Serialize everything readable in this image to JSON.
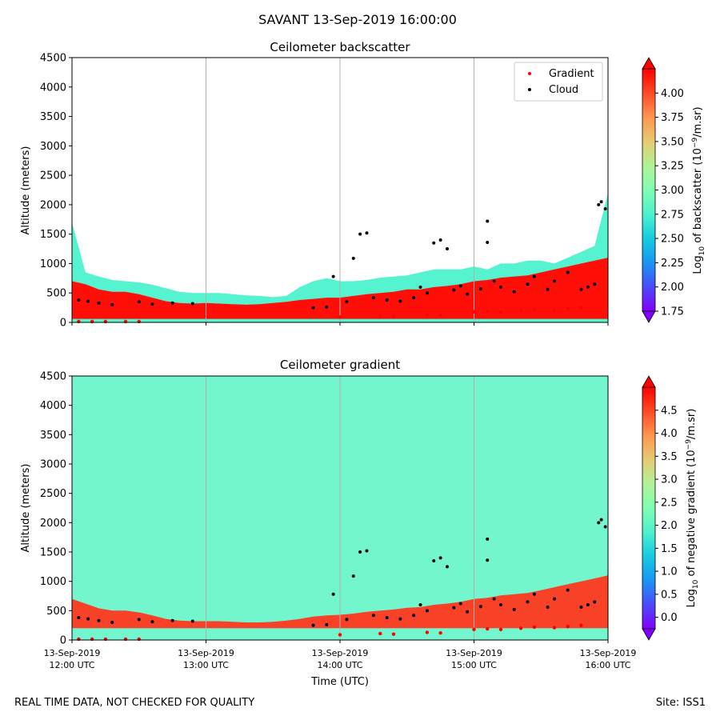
{
  "suptitle": "SAVANT 13-Sep-2019 16:00:00",
  "footer_left": "REAL TIME DATA, NOT CHECKED FOR QUALITY",
  "footer_right": "Site: ISS1",
  "colors": {
    "colormap": [
      "#8000ff",
      "#4b4afd",
      "#1996f3",
      "#16cbe0",
      "#4cf2ce",
      "#80feb3",
      "#b2f296",
      "#e6cb73",
      "#ff964f",
      "#ff4a26",
      "#ff0000"
    ],
    "gradient_marker": "#ff0000",
    "cloud_marker": "#000000",
    "vline": "#b0b0b0"
  },
  "chart_data": [
    {
      "type": "heatmap",
      "title": "Ceilometer backscatter",
      "ylabel": "Altitude (meters)",
      "ylim": [
        0,
        4500
      ],
      "yticks": [
        "0",
        "500",
        "1000",
        "1500",
        "2000",
        "2500",
        "3000",
        "3500",
        "4000",
        "4500"
      ],
      "xlim": [
        "2019-09-13 12:00",
        "2019-09-13 16:00"
      ],
      "vlines": [
        "13:00",
        "14:00",
        "15:00"
      ],
      "legend": {
        "position": "upper right",
        "entries": [
          "Gradient",
          "Cloud"
        ]
      },
      "colorbar": {
        "label_pre": "Log",
        "label_sub": "10",
        "label_mid": " of backscatter (10",
        "label_sup": "−9",
        "label_post": "/m.sr)",
        "range": [
          1.75,
          4.25
        ],
        "ticks": [
          "1.75",
          "2.00",
          "2.25",
          "2.50",
          "2.75",
          "3.00",
          "3.25",
          "3.50",
          "3.75",
          "4.00"
        ],
        "extend": "both"
      },
      "layers": [
        {
          "name": "near-surface backscatter",
          "level": 4.2,
          "top_m": [
            700,
            650,
            560,
            520,
            520,
            480,
            420,
            360,
            330,
            320,
            330,
            320,
            310,
            300,
            310,
            330,
            350,
            380,
            400,
            420,
            420,
            450,
            480,
            500,
            520,
            560,
            560,
            600,
            620,
            650,
            700,
            720,
            760,
            780,
            800,
            850,
            900,
            950,
            1000,
            1050,
            1100
          ],
          "bottom_m": 60
        },
        {
          "name": "aerosol layer",
          "level": 2.75,
          "top_m": [
            1700,
            850,
            780,
            720,
            700,
            680,
            640,
            580,
            520,
            500,
            500,
            500,
            480,
            460,
            450,
            430,
            450,
            600,
            700,
            750,
            700,
            700,
            720,
            760,
            780,
            800,
            850,
            900,
            900,
            900,
            950,
            900,
            1000,
            1000,
            1050,
            1050,
            1000,
            1100,
            1200,
            1300,
            2200
          ],
          "bottom_m": 0
        }
      ],
      "cloud_points_m": [
        [
          12.05,
          380
        ],
        [
          12.12,
          360
        ],
        [
          12.2,
          330
        ],
        [
          12.3,
          300
        ],
        [
          12.5,
          350
        ],
        [
          12.6,
          310
        ],
        [
          12.75,
          330
        ],
        [
          12.9,
          320
        ],
        [
          13.8,
          250
        ],
        [
          13.9,
          260
        ],
        [
          13.95,
          780
        ],
        [
          14.05,
          350
        ],
        [
          14.1,
          1090
        ],
        [
          14.15,
          1500
        ],
        [
          14.2,
          1520
        ],
        [
          14.25,
          420
        ],
        [
          14.35,
          380
        ],
        [
          14.45,
          360
        ],
        [
          14.55,
          420
        ],
        [
          14.6,
          600
        ],
        [
          14.65,
          500
        ],
        [
          14.7,
          1350
        ],
        [
          14.75,
          1400
        ],
        [
          14.8,
          1250
        ],
        [
          14.85,
          550
        ],
        [
          14.9,
          620
        ],
        [
          14.95,
          480
        ],
        [
          15.05,
          570
        ],
        [
          15.1,
          1720
        ],
        [
          15.1,
          1360
        ],
        [
          15.15,
          700
        ],
        [
          15.2,
          600
        ],
        [
          15.3,
          520
        ],
        [
          15.4,
          650
        ],
        [
          15.45,
          780
        ],
        [
          15.55,
          560
        ],
        [
          15.6,
          700
        ],
        [
          15.7,
          850
        ],
        [
          15.8,
          560
        ],
        [
          15.85,
          600
        ],
        [
          15.9,
          650
        ],
        [
          15.93,
          2000
        ],
        [
          15.95,
          2050
        ],
        [
          15.98,
          1930
        ]
      ],
      "gradient_points_m": [
        [
          12.05,
          15
        ],
        [
          12.15,
          15
        ],
        [
          12.25,
          15
        ],
        [
          12.4,
          15
        ],
        [
          12.5,
          15
        ],
        [
          14.0,
          90
        ],
        [
          14.3,
          110
        ],
        [
          14.4,
          100
        ],
        [
          14.65,
          130
        ],
        [
          14.75,
          120
        ],
        [
          15.0,
          180
        ],
        [
          15.1,
          190
        ],
        [
          15.2,
          180
        ],
        [
          15.35,
          200
        ],
        [
          15.45,
          220
        ],
        [
          15.6,
          210
        ],
        [
          15.7,
          230
        ],
        [
          15.8,
          250
        ]
      ]
    },
    {
      "type": "heatmap",
      "title": "Ceilometer gradient",
      "ylabel": "Altitude (meters)",
      "xlabel": "Time (UTC)",
      "ylim": [
        0,
        4500
      ],
      "yticks": [
        "0",
        "500",
        "1000",
        "1500",
        "2000",
        "2500",
        "3000",
        "3500",
        "4000",
        "4500"
      ],
      "xticks": [
        {
          "date": "13-Sep-2019",
          "time": "12:00 UTC"
        },
        {
          "date": "13-Sep-2019",
          "time": "13:00 UTC"
        },
        {
          "date": "13-Sep-2019",
          "time": "14:00 UTC"
        },
        {
          "date": "13-Sep-2019",
          "time": "15:00 UTC"
        },
        {
          "date": "13-Sep-2019",
          "time": "16:00 UTC"
        }
      ],
      "colorbar": {
        "label_pre": "Log",
        "label_sub": "10",
        "label_mid": " of negative gradient (10",
        "label_sup": "−9",
        "label_post": "/m.sr)",
        "range": [
          -0.25,
          5.0
        ],
        "ticks": [
          "0.0",
          "0.5",
          "1.0",
          "1.5",
          "2.0",
          "2.5",
          "3.0",
          "3.5",
          "4.0",
          "4.5"
        ],
        "extend": "both"
      },
      "background_level": 2.0,
      "layers": [
        {
          "name": "gradient layer",
          "level": 4.6,
          "top_m": [
            700,
            620,
            540,
            500,
            500,
            470,
            420,
            360,
            330,
            320,
            320,
            320,
            310,
            300,
            300,
            310,
            330,
            360,
            400,
            420,
            430,
            450,
            480,
            500,
            520,
            550,
            560,
            600,
            620,
            650,
            700,
            720,
            760,
            780,
            800,
            850,
            900,
            950,
            1000,
            1050,
            1100
          ],
          "bottom_m": 200
        }
      ]
    }
  ]
}
